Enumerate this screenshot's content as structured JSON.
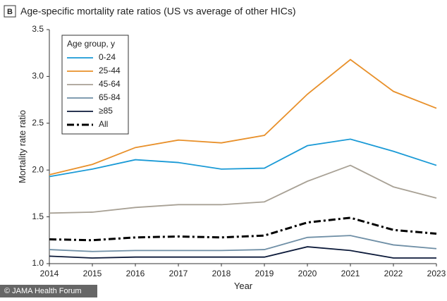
{
  "chart_data": {
    "type": "line",
    "panel_label": "B",
    "title": "Age-specific mortality rate ratios (US vs average of other HICs)",
    "x_label": "Year",
    "y_label": "Mortality rate ratio",
    "x": [
      2014,
      2015,
      2016,
      2017,
      2018,
      2019,
      2020,
      2021,
      2022,
      2023
    ],
    "xlim": [
      2014,
      2023
    ],
    "xticks": [
      2014,
      2015,
      2016,
      2017,
      2018,
      2019,
      2020,
      2021,
      2022,
      2023
    ],
    "ylim": [
      1,
      3.5
    ],
    "yticks": [
      {
        "value": 1,
        "label": "1.0"
      },
      1.5,
      {
        "value": 2,
        "label": "2.0"
      },
      2.5,
      {
        "value": 3,
        "label": "3.0"
      },
      3.5
    ],
    "legend_title": "Age group, y",
    "legend_position": "upper left",
    "series": [
      {
        "name": "0-24",
        "color": "#1a9ad6",
        "dash": "solid",
        "values": [
          1.93,
          2.01,
          2.11,
          2.08,
          2.01,
          2.02,
          2.26,
          2.33,
          2.2,
          2.05
        ]
      },
      {
        "name": "25-44",
        "color": "#e8902a",
        "dash": "solid",
        "values": [
          1.95,
          2.06,
          2.24,
          2.32,
          2.29,
          2.37,
          2.81,
          3.18,
          2.84,
          2.66
        ]
      },
      {
        "name": "45-64",
        "color": "#a8a195",
        "dash": "solid",
        "values": [
          1.54,
          1.55,
          1.6,
          1.63,
          1.63,
          1.66,
          1.88,
          2.05,
          1.82,
          1.7
        ]
      },
      {
        "name": "65-84",
        "color": "#6f8fa6",
        "dash": "solid",
        "values": [
          1.15,
          1.13,
          1.14,
          1.14,
          1.14,
          1.15,
          1.28,
          1.3,
          1.2,
          1.16
        ]
      },
      {
        "name": "≥85",
        "color": "#0c1a3a",
        "dash": "solid",
        "values": [
          1.08,
          1.06,
          1.07,
          1.07,
          1.07,
          1.07,
          1.18,
          1.14,
          1.06,
          1.06
        ]
      },
      {
        "name": "All",
        "color": "#000000",
        "dash": "dashdot",
        "values": [
          1.26,
          1.25,
          1.28,
          1.29,
          1.28,
          1.3,
          1.44,
          1.49,
          1.36,
          1.32
        ]
      }
    ],
    "credit": "© JAMA Health Forum"
  }
}
